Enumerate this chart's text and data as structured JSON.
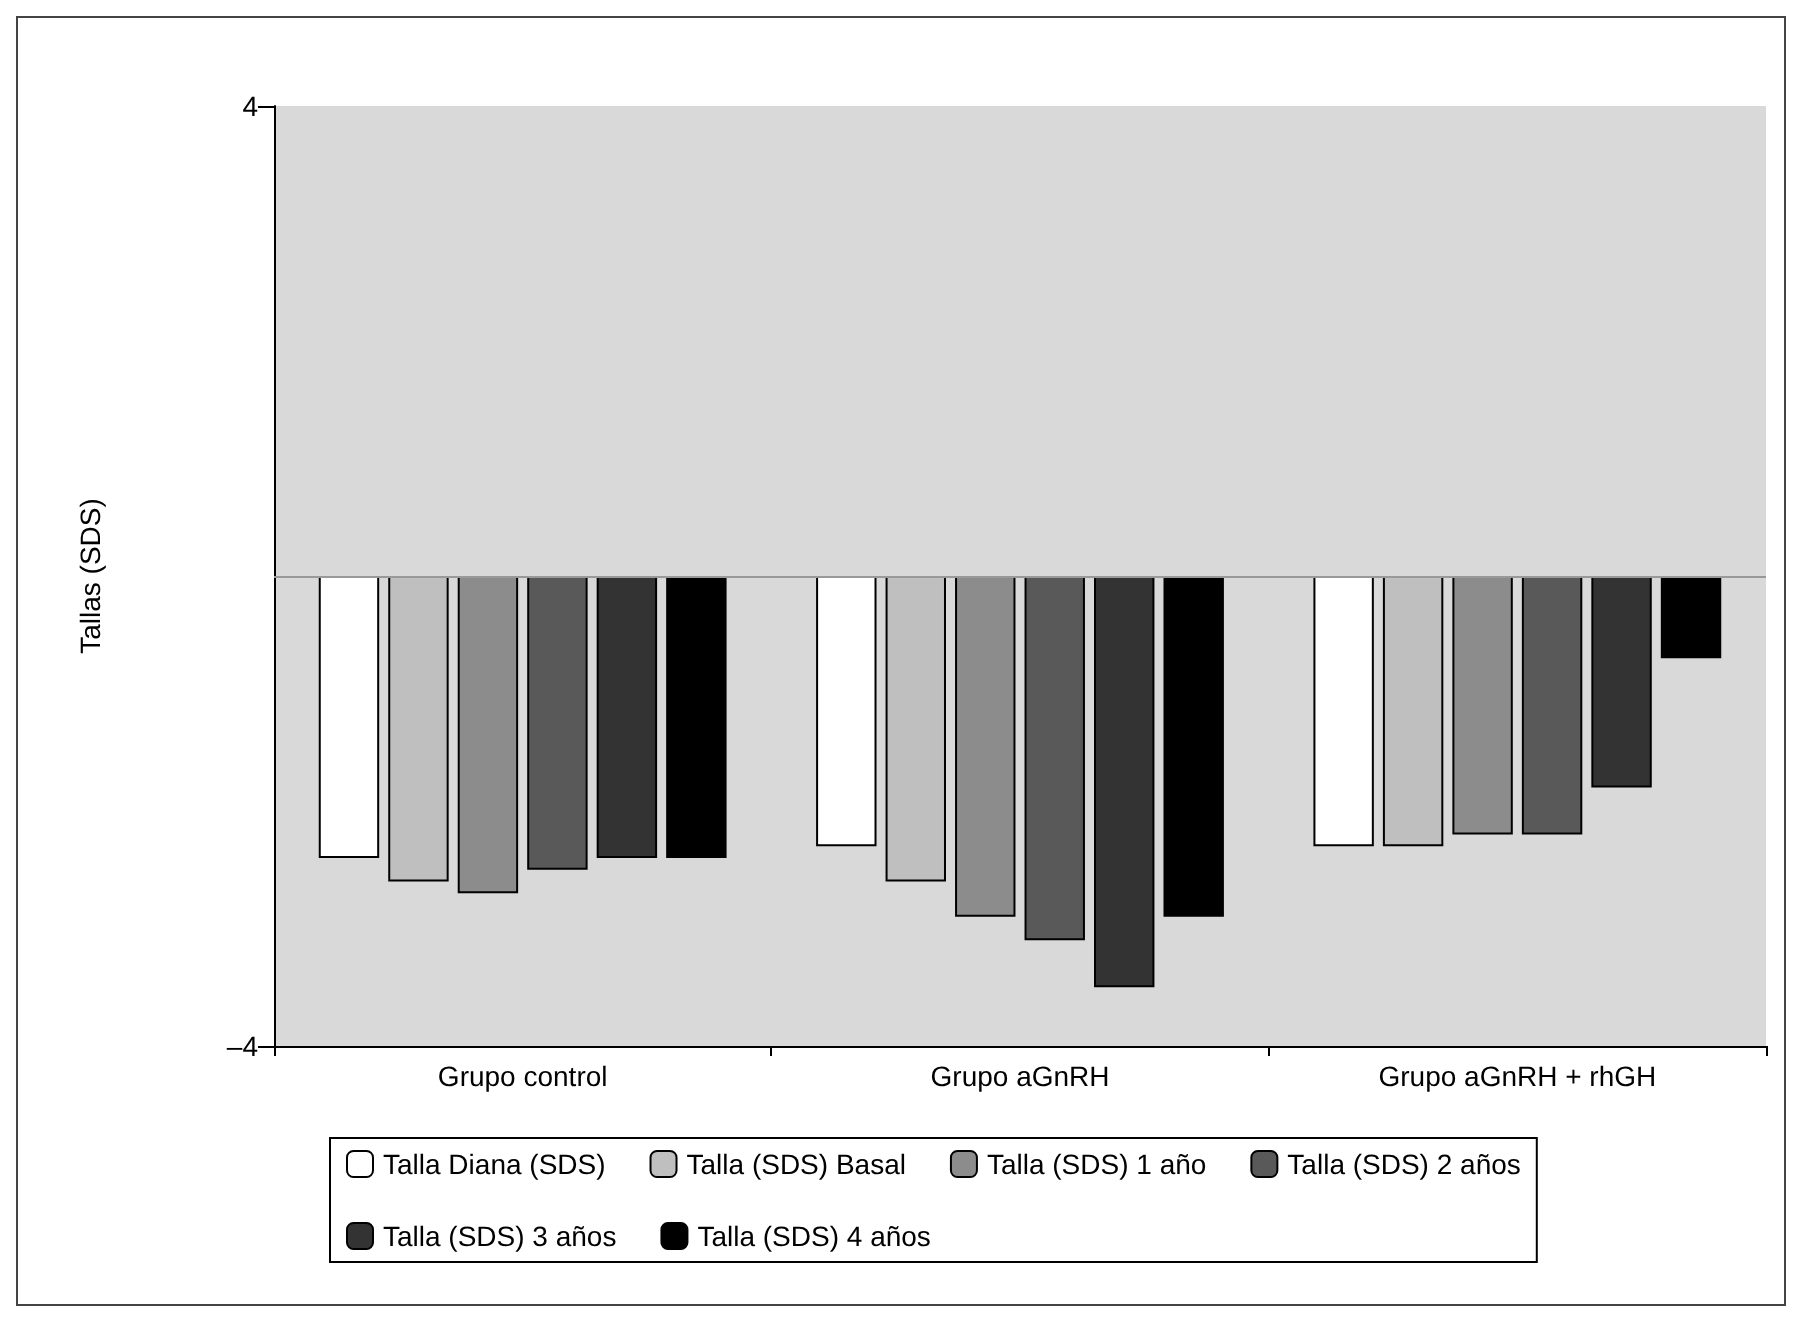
{
  "chart_data": {
    "type": "bar",
    "ylabel": "Tallas (SDS)",
    "categories": [
      "Grupo control",
      "Grupo aGnRH",
      "Grupo aGnRH + rhGH"
    ],
    "series": [
      {
        "name": "Talla Diana (SDS)",
        "color": "#ffffff",
        "values": [
          -2.4,
          -2.3,
          -2.3
        ]
      },
      {
        "name": "Talla (SDS) Basal",
        "color": "#bfbfbf",
        "values": [
          -2.6,
          -2.6,
          -2.3
        ]
      },
      {
        "name": "Talla (SDS) 1 año",
        "color": "#8c8c8c",
        "values": [
          -2.7,
          -2.9,
          -2.2
        ]
      },
      {
        "name": "Talla (SDS) 2 años",
        "color": "#595959",
        "values": [
          -2.5,
          -3.1,
          -2.2
        ]
      },
      {
        "name": "Talla (SDS) 3 años",
        "color": "#333333",
        "values": [
          -2.4,
          -3.5,
          -1.8
        ]
      },
      {
        "name": "Talla (SDS) 4 años",
        "color": "#000000",
        "values": [
          -2.4,
          -2.9,
          -0.7
        ]
      }
    ],
    "ylim": [
      -4,
      4
    ],
    "yticks": [
      {
        "value": -4,
        "label": "–4"
      },
      4
    ],
    "ref_lines": [
      {
        "axis": "y",
        "value": 0,
        "color": "#999999"
      }
    ],
    "legend": "bottom",
    "grid": false
  }
}
